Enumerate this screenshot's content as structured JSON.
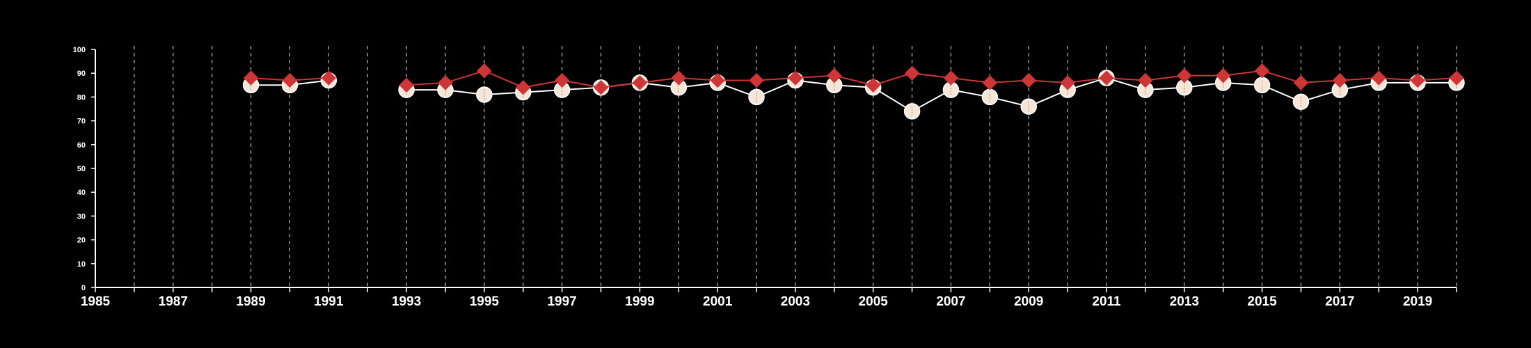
{
  "chart_data": {
    "type": "line",
    "title": "",
    "xlabel": "",
    "ylabel": "",
    "xlim": [
      1985,
      2020
    ],
    "ylim": [
      0,
      100
    ],
    "x_ticks": [
      1985,
      1987,
      1989,
      1991,
      1993,
      1995,
      1997,
      1999,
      2001,
      2003,
      2005,
      2007,
      2009,
      2011,
      2013,
      2015,
      2017,
      2019
    ],
    "y_ticks": [
      0,
      10,
      20,
      30,
      40,
      50,
      60,
      70,
      80,
      90,
      100
    ],
    "grid": "vertical dashed lines at each year",
    "background": "#000000",
    "axis_color": "#ffffff",
    "grid_color": "#bbbbbb",
    "series": [
      {
        "marker": "circle",
        "color": "#f5e6d8",
        "line_color": "#ffffff",
        "x": [
          1989,
          1990,
          1991,
          1993,
          1994,
          1995,
          1996,
          1997,
          1998,
          1999,
          2000,
          2001,
          2002,
          2003,
          2004,
          2005,
          2006,
          2007,
          2008,
          2009,
          2010,
          2011,
          2012,
          2013,
          2014,
          2015,
          2016,
          2017,
          2018,
          2019,
          2020
        ],
        "values": [
          85,
          85,
          87,
          83,
          83,
          81,
          82,
          83,
          84,
          86,
          84,
          86,
          80,
          87,
          85,
          84,
          74,
          83,
          80,
          76,
          83,
          88,
          83,
          84,
          86,
          85,
          78,
          83,
          86,
          86,
          86
        ]
      },
      {
        "marker": "diamond",
        "color": "#d03535",
        "line_color": "#d03535",
        "x": [
          1989,
          1990,
          1991,
          1993,
          1994,
          1995,
          1996,
          1997,
          1998,
          1999,
          2000,
          2001,
          2002,
          2003,
          2004,
          2005,
          2006,
          2007,
          2008,
          2009,
          2010,
          2011,
          2012,
          2013,
          2014,
          2015,
          2016,
          2017,
          2018,
          2019,
          2020
        ],
        "values": [
          88,
          87,
          88,
          85,
          86,
          91,
          84,
          87,
          84,
          86,
          88,
          87,
          87,
          88,
          89,
          85,
          90,
          88,
          86,
          87,
          86,
          88,
          87,
          89,
          89,
          91,
          86,
          87,
          88,
          87,
          88
        ]
      }
    ]
  }
}
